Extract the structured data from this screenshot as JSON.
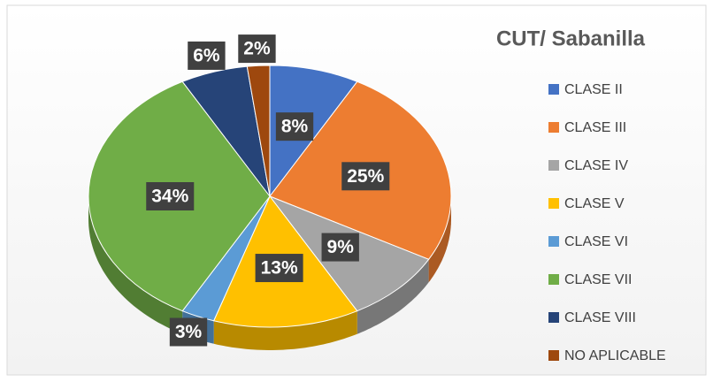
{
  "chart_data": {
    "type": "pie",
    "title": "CUT/ Sabanilla",
    "categories": [
      "CLASE II",
      "CLASE III",
      "CLASE IV",
      "CLASE V",
      "CLASE VI",
      "CLASE VII",
      "CLASE VIII",
      "NO APLICABLE"
    ],
    "values": [
      8,
      25,
      9,
      13,
      3,
      34,
      6,
      2
    ],
    "value_labels": [
      "8%",
      "25%",
      "9%",
      "13%",
      "3%",
      "34%",
      "6%",
      "2%"
    ],
    "colors": [
      "#4472c4",
      "#ed7d31",
      "#a5a5a5",
      "#ffc000",
      "#5b9bd5",
      "#70ad47",
      "#264478",
      "#9e480e"
    ],
    "legend": "right"
  }
}
